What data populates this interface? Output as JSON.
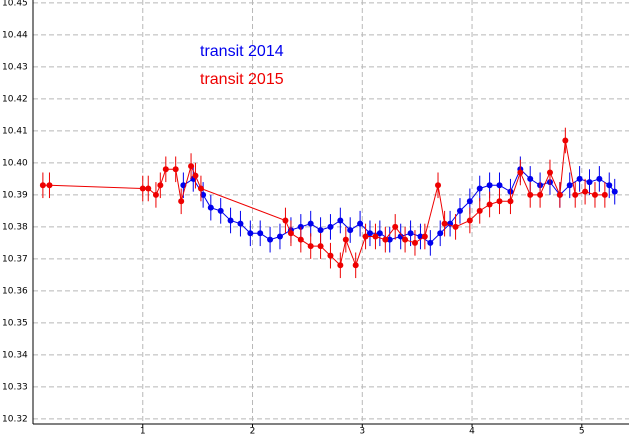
{
  "chart_data": {
    "type": "scatter",
    "xlim": [
      0,
      5.43
    ],
    "ylim": [
      10.3184,
      10.4509
    ],
    "xticks": [
      1,
      2,
      3,
      4,
      5
    ],
    "yticks": [
      10.32,
      10.33,
      10.34,
      10.35,
      10.36,
      10.37,
      10.38,
      10.39,
      {
        "value": 10.4,
        "label": "10.40"
      },
      10.41,
      10.42,
      10.43,
      10.44,
      10.45
    ],
    "grid": true,
    "series": [
      {
        "name": "transit 2014",
        "color": "#0000ee",
        "error": 0.004,
        "x": [
          1.37,
          1.46,
          1.55,
          1.62,
          1.71,
          1.8,
          1.89,
          1.98,
          2.07,
          2.16,
          2.25,
          2.35,
          2.44,
          2.53,
          2.62,
          2.71,
          2.8,
          2.89,
          2.98,
          3.07,
          3.16,
          3.25,
          3.35,
          3.44,
          3.53,
          3.62,
          3.71,
          3.8,
          3.89,
          3.98,
          4.07,
          4.16,
          4.25,
          4.35,
          4.44,
          4.53,
          4.62,
          4.71,
          4.8,
          4.89,
          4.98,
          5.07,
          5.16,
          5.25,
          5.3
        ],
        "values": [
          10.393,
          10.395,
          10.39,
          10.386,
          10.385,
          10.382,
          10.381,
          10.378,
          10.378,
          10.376,
          10.377,
          10.379,
          10.38,
          10.381,
          10.379,
          10.38,
          10.382,
          10.379,
          10.381,
          10.378,
          10.378,
          10.376,
          10.377,
          10.378,
          10.377,
          10.375,
          10.378,
          10.381,
          10.385,
          10.388,
          10.392,
          10.393,
          10.393,
          10.391,
          10.398,
          10.395,
          10.393,
          10.394,
          10.39,
          10.393,
          10.395,
          10.394,
          10.395,
          10.393,
          10.391
        ]
      },
      {
        "name": "transit 2015",
        "color": "#ee0000",
        "error": 0.004,
        "x": [
          0.09,
          0.15,
          1.0,
          1.05,
          1.12,
          1.16,
          1.21,
          1.3,
          1.35,
          1.44,
          1.48,
          1.53,
          2.3,
          2.35,
          2.44,
          2.53,
          2.62,
          2.71,
          2.8,
          2.85,
          2.94,
          3.03,
          3.12,
          3.21,
          3.3,
          3.39,
          3.48,
          3.57,
          3.69,
          3.75,
          3.85,
          3.98,
          4.07,
          4.16,
          4.25,
          4.35,
          4.44,
          4.53,
          4.62,
          4.71,
          4.8,
          4.85,
          4.94,
          5.03,
          5.12,
          5.21
        ],
        "values": [
          10.393,
          10.393,
          10.392,
          10.392,
          10.39,
          10.393,
          10.398,
          10.398,
          10.388,
          10.399,
          10.396,
          10.392,
          10.382,
          10.378,
          10.376,
          10.374,
          10.374,
          10.371,
          10.368,
          10.376,
          10.368,
          10.377,
          10.377,
          10.376,
          10.38,
          10.376,
          10.375,
          10.377,
          10.393,
          10.381,
          10.38,
          10.382,
          10.385,
          10.387,
          10.388,
          10.388,
          10.397,
          10.39,
          10.39,
          10.397,
          10.39,
          10.407,
          10.39,
          10.391,
          10.39,
          10.39
        ]
      }
    ]
  }
}
